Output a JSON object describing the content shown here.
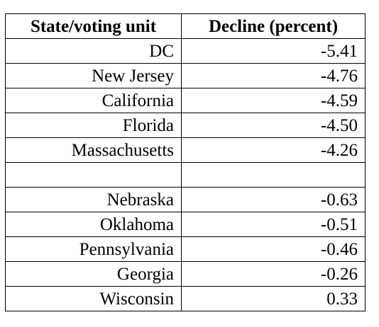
{
  "table": {
    "headers": [
      "State/voting unit",
      "Decline (percent)"
    ],
    "rows": [
      [
        "DC",
        "-5.41"
      ],
      [
        "New Jersey",
        "-4.76"
      ],
      [
        "California",
        "-4.59"
      ],
      [
        "Florida",
        "-4.50"
      ],
      [
        "Massachusetts",
        "-4.26"
      ],
      [
        "",
        ""
      ],
      [
        "Nebraska",
        "-0.63"
      ],
      [
        "Oklahoma",
        "-0.51"
      ],
      [
        "Pennsylvania",
        "-0.46"
      ],
      [
        "Georgia",
        "-0.26"
      ],
      [
        "Wisconsin",
        "0.33"
      ]
    ]
  }
}
